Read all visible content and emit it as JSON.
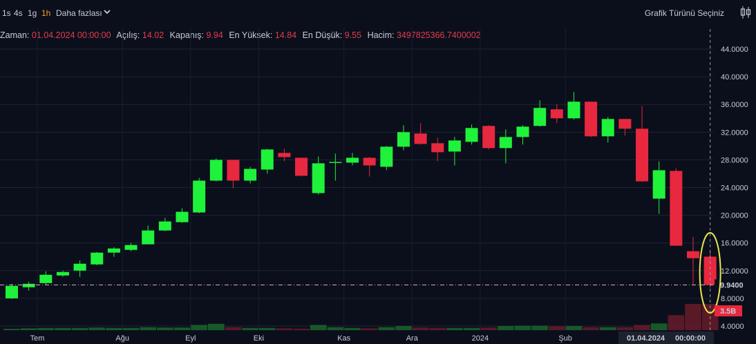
{
  "toolbar": {
    "timeframes": [
      "1s",
      "4s",
      "1g",
      "1h"
    ],
    "active_timeframe": "1h",
    "more_label": "Daha fazlası",
    "chart_type_label": "Grafik Türünü Seçiniz"
  },
  "ohlc": {
    "time_label": "Zaman:",
    "time_value": "01.04.2024 00:00:00",
    "open_label": "Açılış:",
    "open_value": "14.02",
    "close_label": "Kapanış:",
    "close_value": "9.94",
    "high_label": "En Yüksek:",
    "high_value": "14.84",
    "low_label": "En Düşük:",
    "low_value": "9.55",
    "volume_label": "Hacim:",
    "volume_value": "3497825366.7400002"
  },
  "colors": {
    "up": "#1ff23a",
    "down": "#e8283e",
    "background": "#0b0f1c",
    "highlight": "#e8e84a"
  },
  "chart_data": {
    "type": "candlestick",
    "y_ticks": [
      "44.0000",
      "40.0000",
      "36.0000",
      "32.0000",
      "28.0000",
      "24.0000",
      "20.0000",
      "16.0000",
      "12.0000",
      "8.0000",
      "4.0000"
    ],
    "y_range": [
      3.4,
      45.5
    ],
    "x_labels": [
      "Tem",
      "Ağu",
      "Eyl",
      "Eki",
      "Kas",
      "Ara",
      "2024",
      "Şub"
    ],
    "x_label_index": [
      1.5,
      6.5,
      10.5,
      14.5,
      19.5,
      23.5,
      27.5,
      32.5
    ],
    "crosshair_date_label": "01.04.2024",
    "crosshair_time_label": "00:00:00",
    "last_price_label": "9.9400",
    "last_price_value": 9.94,
    "last_volume_label": "3.5B",
    "candles": [
      {
        "o": 8.0,
        "h": 10.1,
        "l": 7.9,
        "c": 9.8,
        "v": 0.15
      },
      {
        "o": 9.6,
        "h": 10.4,
        "l": 9.1,
        "c": 10.1,
        "v": 0.25
      },
      {
        "o": 10.2,
        "h": 11.9,
        "l": 10.0,
        "c": 11.4,
        "v": 0.3
      },
      {
        "o": 11.3,
        "h": 12.0,
        "l": 11.1,
        "c": 11.8,
        "v": 0.3
      },
      {
        "o": 12.0,
        "h": 13.5,
        "l": 11.1,
        "c": 13.0,
        "v": 0.3
      },
      {
        "o": 12.9,
        "h": 14.7,
        "l": 12.8,
        "c": 14.6,
        "v": 0.35
      },
      {
        "o": 14.6,
        "h": 15.4,
        "l": 14.0,
        "c": 15.2,
        "v": 0.3
      },
      {
        "o": 15.0,
        "h": 16.0,
        "l": 14.8,
        "c": 15.7,
        "v": 0.3
      },
      {
        "o": 15.8,
        "h": 18.5,
        "l": 15.8,
        "c": 17.8,
        "v": 0.4
      },
      {
        "o": 17.8,
        "h": 19.6,
        "l": 17.7,
        "c": 19.1,
        "v": 0.35
      },
      {
        "o": 19.0,
        "h": 21.0,
        "l": 18.9,
        "c": 20.5,
        "v": 0.35
      },
      {
        "o": 20.4,
        "h": 25.4,
        "l": 20.3,
        "c": 25.0,
        "v": 0.7
      },
      {
        "o": 25.0,
        "h": 28.2,
        "l": 24.9,
        "c": 28.0,
        "v": 0.85
      },
      {
        "o": 28.0,
        "h": 28.0,
        "l": 23.9,
        "c": 25.0,
        "v": 0.4
      },
      {
        "o": 25.0,
        "h": 27.0,
        "l": 24.6,
        "c": 26.7,
        "v": 0.3
      },
      {
        "o": 26.6,
        "h": 29.6,
        "l": 26.0,
        "c": 29.5,
        "v": 0.3
      },
      {
        "o": 29.0,
        "h": 29.6,
        "l": 27.8,
        "c": 28.4,
        "v": 0.25
      },
      {
        "o": 28.3,
        "h": 28.3,
        "l": 25.6,
        "c": 25.7,
        "v": 0.2
      },
      {
        "o": 23.2,
        "h": 28.5,
        "l": 23.0,
        "c": 27.5,
        "v": 0.7
      },
      {
        "o": 27.6,
        "h": 28.9,
        "l": 25.0,
        "c": 27.7,
        "v": 0.4
      },
      {
        "o": 27.6,
        "h": 29.0,
        "l": 27.2,
        "c": 28.3,
        "v": 0.3
      },
      {
        "o": 28.3,
        "h": 28.4,
        "l": 25.6,
        "c": 27.2,
        "v": 0.25
      },
      {
        "o": 27.0,
        "h": 30.0,
        "l": 26.5,
        "c": 29.9,
        "v": 0.4
      },
      {
        "o": 29.9,
        "h": 33.0,
        "l": 29.4,
        "c": 32.0,
        "v": 0.55
      },
      {
        "o": 31.8,
        "h": 33.3,
        "l": 30.2,
        "c": 30.3,
        "v": 0.35
      },
      {
        "o": 30.4,
        "h": 31.2,
        "l": 27.8,
        "c": 29.1,
        "v": 0.3
      },
      {
        "o": 29.2,
        "h": 31.3,
        "l": 27.2,
        "c": 30.8,
        "v": 0.3
      },
      {
        "o": 30.6,
        "h": 33.1,
        "l": 30.2,
        "c": 32.6,
        "v": 0.3
      },
      {
        "o": 32.9,
        "h": 33.0,
        "l": 29.5,
        "c": 29.7,
        "v": 0.35
      },
      {
        "o": 29.7,
        "h": 32.4,
        "l": 27.5,
        "c": 31.3,
        "v": 0.55
      },
      {
        "o": 31.3,
        "h": 33.0,
        "l": 30.2,
        "c": 32.8,
        "v": 0.6
      },
      {
        "o": 32.9,
        "h": 36.6,
        "l": 32.8,
        "c": 35.5,
        "v": 0.6
      },
      {
        "o": 35.3,
        "h": 36.0,
        "l": 33.3,
        "c": 34.0,
        "v": 0.5
      },
      {
        "o": 34.0,
        "h": 37.8,
        "l": 33.8,
        "c": 36.4,
        "v": 0.55
      },
      {
        "o": 36.4,
        "h": 36.4,
        "l": 31.3,
        "c": 31.4,
        "v": 0.4
      },
      {
        "o": 31.4,
        "h": 34.2,
        "l": 30.5,
        "c": 33.9,
        "v": 0.4
      },
      {
        "o": 33.9,
        "h": 33.9,
        "l": 31.5,
        "c": 32.5,
        "v": 0.4
      },
      {
        "o": 32.5,
        "h": 35.8,
        "l": 24.8,
        "c": 24.9,
        "v": 0.7
      },
      {
        "o": 22.4,
        "h": 27.8,
        "l": 20.2,
        "c": 26.5,
        "v": 0.9
      },
      {
        "o": 26.4,
        "h": 26.8,
        "l": 15.6,
        "c": 15.6,
        "v": 2.0
      },
      {
        "o": 14.8,
        "h": 16.9,
        "l": 10.0,
        "c": 13.8,
        "v": 3.5
      },
      {
        "o": 14.02,
        "h": 14.84,
        "l": 9.55,
        "c": 9.94,
        "v": 3.5
      }
    ]
  }
}
